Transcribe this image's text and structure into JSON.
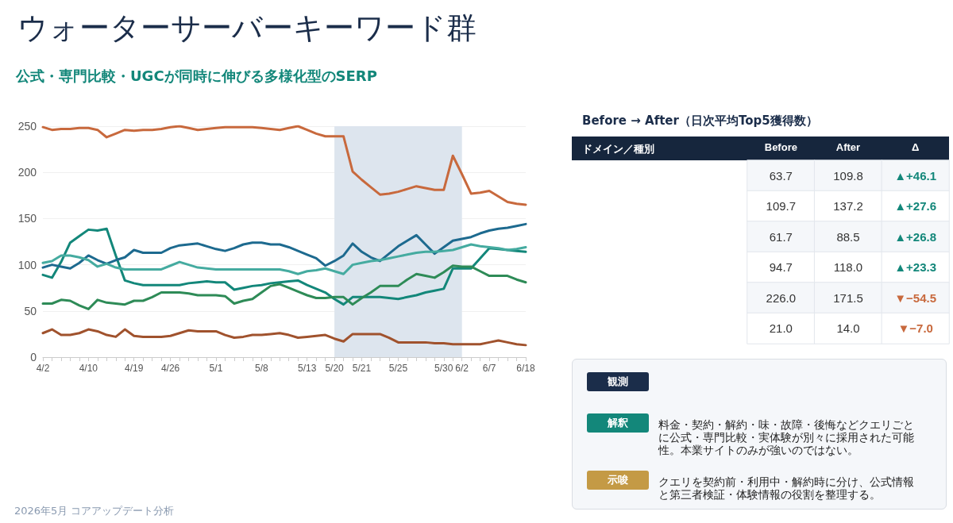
{
  "chart_data": [
    {
      "type": "line",
      "title": "ウォーターサーバーキーワード群",
      "subtitle": "公式・専門比較・UGCが同時に伸びる多様化型のSERP",
      "categories": [
        "4/2",
        null,
        null,
        null,
        null,
        "4/10",
        null,
        null,
        null,
        null,
        "4/19",
        null,
        null,
        null,
        "4/26",
        null,
        null,
        null,
        null,
        "5/1",
        null,
        null,
        null,
        null,
        "5/8",
        null,
        null,
        null,
        null,
        "5/13",
        null,
        null,
        "5/20",
        null,
        null,
        "5/21",
        null,
        null,
        null,
        "5/25",
        null,
        null,
        null,
        null,
        "5/30",
        null,
        "6/2",
        null,
        null,
        "6/7",
        null,
        null,
        null,
        "6/18"
      ],
      "series": [
        {
          "color": "#13877a",
          "values": [
            89,
            86,
            103,
            124,
            131,
            138,
            137,
            139,
            110,
            83,
            80,
            78,
            78,
            78,
            78,
            78,
            80,
            81,
            82,
            81,
            81,
            73,
            75,
            77,
            78,
            80,
            81,
            82,
            83,
            78,
            74,
            70,
            63,
            57,
            65,
            65,
            65,
            65,
            64,
            63,
            65,
            67,
            70,
            72,
            74,
            96,
            96,
            96,
            107,
            118,
            117,
            116,
            115,
            114
          ]
        },
        {
          "color": "#1d6a8f",
          "values": [
            97,
            100,
            98,
            96,
            102,
            110,
            105,
            101,
            105,
            108,
            116,
            113,
            113,
            113,
            118,
            121,
            122,
            123,
            120,
            117,
            115,
            118,
            122,
            124,
            124,
            122,
            122,
            119,
            115,
            111,
            107,
            99,
            104,
            110,
            123,
            114,
            108,
            104,
            112,
            120,
            126,
            132,
            122,
            112,
            119,
            126,
            128,
            130,
            134,
            137,
            139,
            140,
            142,
            144
          ]
        },
        {
          "color": "#2e8b57",
          "values": [
            58,
            58,
            62,
            61,
            56,
            52,
            62,
            59,
            58,
            57,
            61,
            61,
            65,
            70,
            70,
            70,
            69,
            67,
            67,
            67,
            66,
            58,
            61,
            63,
            70,
            77,
            79,
            75,
            71,
            67,
            64,
            64,
            65,
            65,
            57,
            64,
            70,
            77,
            77,
            77,
            84,
            90,
            88,
            86,
            92,
            99,
            98,
            98,
            93,
            88,
            88,
            88,
            84,
            81
          ]
        },
        {
          "color": "#45aba0",
          "values": [
            102,
            104,
            110,
            110,
            108,
            105,
            98,
            101,
            97,
            95,
            95,
            95,
            95,
            95,
            99,
            103,
            100,
            97,
            96,
            95,
            95,
            95,
            95,
            95,
            95,
            95,
            95,
            93,
            90,
            93,
            94,
            96,
            93,
            90,
            100,
            102,
            104,
            105,
            107,
            109,
            111,
            113,
            114,
            114,
            115,
            116,
            119,
            122,
            120,
            119,
            118,
            116,
            117,
            119
          ]
        },
        {
          "color": "#c8693d",
          "values": [
            249,
            246,
            247,
            247,
            248,
            248,
            246,
            238,
            242,
            246,
            245,
            246,
            246,
            247,
            249,
            250,
            248,
            246,
            247,
            248,
            249,
            249,
            249,
            249,
            248,
            247,
            246,
            248,
            250,
            246,
            242,
            239,
            239,
            239,
            201,
            192,
            184,
            176,
            177,
            179,
            182,
            185,
            183,
            181,
            181,
            218,
            198,
            177,
            178,
            180,
            174,
            168,
            166,
            165
          ]
        },
        {
          "color": "#a0522d",
          "values": [
            26,
            30,
            24,
            24,
            26,
            30,
            28,
            24,
            22,
            30,
            23,
            22,
            22,
            22,
            23,
            26,
            29,
            28,
            28,
            28,
            24,
            21,
            22,
            24,
            24,
            25,
            26,
            24,
            21,
            22,
            23,
            24,
            20,
            17,
            25,
            25,
            25,
            25,
            21,
            16,
            16,
            16,
            16,
            15,
            15,
            14,
            14,
            14,
            14,
            16,
            18,
            16,
            14,
            13
          ]
        }
      ],
      "bands": [
        {
          "axis": "x",
          "from": "5/20",
          "to": "6/2",
          "color": "#dde5ee"
        }
      ],
      "ylim": [
        0,
        250
      ],
      "yticks": [
        0,
        50,
        100,
        150,
        200,
        250
      ],
      "grid": "y",
      "marker": "none",
      "line_style": "solid",
      "annotations": [
        "2026年5月 コアアップデート分析"
      ]
    },
    {
      "type": "heatmap",
      "title": "Before → After（日次平均Top5獲得数）",
      "ylabel": "ドメイン／種別",
      "categories": [
        "Before",
        "After",
        "Δ"
      ],
      "y_categories": [
        null,
        null,
        null,
        null,
        null,
        null
      ],
      "cells": [
        [
          63.7,
          109.8,
          46.1
        ],
        [
          109.7,
          137.2,
          27.6
        ],
        [
          61.7,
          88.5,
          26.8
        ],
        [
          94.7,
          118.0,
          23.3
        ],
        [
          226.0,
          171.5,
          -54.5
        ],
        [
          21.0,
          14.0,
          -7.0
        ]
      ],
      "cell_labels": [
        [
          "63.7",
          "109.8",
          "▲+46.1"
        ],
        [
          "109.7",
          "137.2",
          "▲+27.6"
        ],
        [
          "61.7",
          "88.5",
          "▲+26.8"
        ],
        [
          "94.7",
          "118.0",
          "▲+23.3"
        ],
        [
          "226.0",
          "171.5",
          "▼−54.5"
        ],
        [
          "21.0",
          "14.0",
          "▼−7.0"
        ]
      ]
    },
    {
      "type": "other",
      "categories": [
        "観測",
        "解釈",
        "示唆"
      ],
      "colors": [
        "#1b2d4a",
        "#13877a",
        "#c49a45"
      ],
      "annotations": [
        "料金・契約・解約・味・故障・後悔などクエリごとに公式・専門比較・実体験が別々に採用された可能性。本業サイトのみが強いのではない。",
        "クエリを契約前・利用中・解約時に分け、公式情報と第三者検証・体験情報の役割を整理する。"
      ]
    }
  ]
}
